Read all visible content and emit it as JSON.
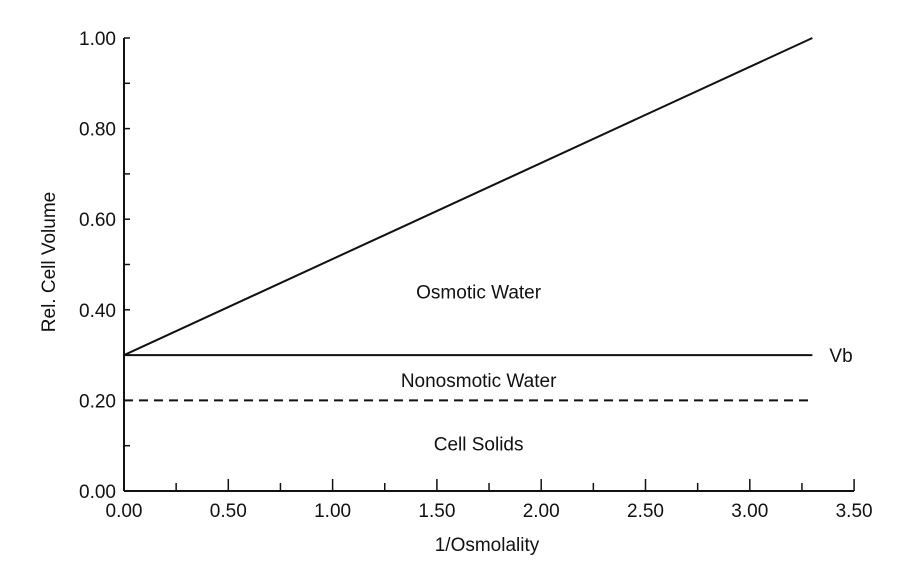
{
  "chart_data": {
    "type": "line",
    "xlabel": "1/Osmolality",
    "ylabel": "Rel. Cell Volume",
    "xlim": [
      0,
      3.5
    ],
    "ylim": [
      0,
      1.0
    ],
    "x_ticks": [
      "0.00",
      "0.50",
      "1.00",
      "1.50",
      "2.00",
      "2.50",
      "3.00",
      "3.50"
    ],
    "y_ticks": [
      "0.00",
      "0.20",
      "0.40",
      "0.60",
      "0.80",
      "1.00"
    ],
    "grid": false,
    "series": [
      {
        "style": "solid",
        "x": [
          0,
          3.3
        ],
        "y": [
          0.3,
          1.0
        ]
      },
      {
        "style": "solid",
        "x": [
          0,
          3.3
        ],
        "y": [
          0.3,
          0.3
        ]
      },
      {
        "style": "dashed",
        "x": [
          0,
          3.3
        ],
        "y": [
          0.2,
          0.2
        ]
      }
    ],
    "annotations": [
      {
        "text": "Osmotic Water",
        "x": 1.7,
        "y": 0.44
      },
      {
        "text": "Vb",
        "x": 3.42,
        "y": 0.3
      },
      {
        "text": "Nonosmotic Water",
        "x": 1.7,
        "y": 0.245
      },
      {
        "text": "Cell Solids",
        "x": 1.7,
        "y": 0.105
      }
    ],
    "color": "#111111"
  }
}
